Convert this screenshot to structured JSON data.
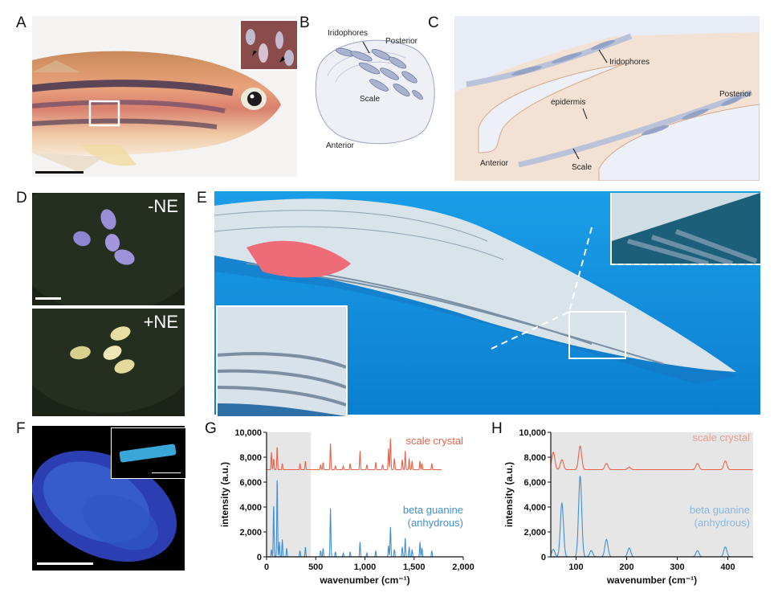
{
  "panel_labels": {
    "A": "A",
    "B": "B",
    "C": "C",
    "D": "D",
    "E": "E",
    "F": "F",
    "G": "G",
    "H": "H"
  },
  "panel_b": {
    "iridophores": "Iridophores",
    "posterior": "Posterior",
    "scale": "Scale",
    "anterior": "Anterior"
  },
  "panel_c": {
    "iridophores": "Iridophores",
    "posterior": "Posterior",
    "epidermis": "epidermis",
    "anterior": "Anterior",
    "scale": "Scale"
  },
  "panel_d": {
    "top": "-NE",
    "bottom": "+NE"
  },
  "colors": {
    "scale_crystal": "#e8634a",
    "beta_guanine": "#3f8fd6",
    "shade": "#e6e6e6"
  },
  "chart_data": [
    {
      "panel": "G",
      "type": "line",
      "xlabel": "wavenumber (cm⁻¹)",
      "ylabel": "intensity (a.u.)",
      "xlim": [
        0,
        2000
      ],
      "ylim": [
        0,
        10000
      ],
      "xticks": [
        0,
        500,
        1000,
        1500,
        2000
      ],
      "xtick_labels": [
        "0",
        "500",
        "1,000",
        "1,500",
        "2,000"
      ],
      "yticks": [
        0,
        2000,
        4000,
        6000,
        8000,
        10000
      ],
      "ytick_labels": [
        "0",
        "2,000",
        "4,000",
        "6,000",
        "8,000",
        "10,000"
      ],
      "shaded_range": [
        0,
        450
      ],
      "series": [
        {
          "name": "scale crystal",
          "label_line2": "",
          "baseline": 7000,
          "peaks": [
            [
              50,
              1400
            ],
            [
              72,
              900
            ],
            [
              108,
              1900
            ],
            [
              160,
              500
            ],
            [
              340,
              500
            ],
            [
              395,
              700
            ],
            [
              550,
              400
            ],
            [
              575,
              600
            ],
            [
              650,
              2100
            ],
            [
              700,
              300
            ],
            [
              780,
              300
            ],
            [
              850,
              500
            ],
            [
              950,
              1500
            ],
            [
              1020,
              400
            ],
            [
              1110,
              600
            ],
            [
              1180,
              400
            ],
            [
              1240,
              1700
            ],
            [
              1260,
              2500
            ],
            [
              1300,
              900
            ],
            [
              1380,
              800
            ],
            [
              1410,
              1500
            ],
            [
              1450,
              900
            ],
            [
              1480,
              700
            ],
            [
              1560,
              700
            ],
            [
              1580,
              500
            ],
            [
              1680,
              500
            ]
          ]
        },
        {
          "name": "beta guanine",
          "label_line2": "(anhydrous)",
          "baseline": 0,
          "peaks": [
            [
              50,
              600
            ],
            [
              72,
              4300
            ],
            [
              108,
              6500
            ],
            [
              130,
              1200
            ],
            [
              160,
              1400
            ],
            [
              205,
              700
            ],
            [
              340,
              500
            ],
            [
              395,
              800
            ],
            [
              550,
              500
            ],
            [
              575,
              700
            ],
            [
              650,
              3900
            ],
            [
              700,
              400
            ],
            [
              780,
              300
            ],
            [
              850,
              400
            ],
            [
              950,
              1200
            ],
            [
              1020,
              300
            ],
            [
              1110,
              500
            ],
            [
              1240,
              900
            ],
            [
              1260,
              2400
            ],
            [
              1300,
              600
            ],
            [
              1380,
              800
            ],
            [
              1410,
              1500
            ],
            [
              1450,
              800
            ],
            [
              1480,
              600
            ],
            [
              1560,
              1200
            ],
            [
              1580,
              700
            ],
            [
              1680,
              500
            ]
          ]
        }
      ]
    },
    {
      "panel": "H",
      "type": "line",
      "xlabel": "wavenumber (cm⁻¹)",
      "ylabel": "intensity (a.u.)",
      "xlim": [
        50,
        450
      ],
      "ylim": [
        0,
        10000
      ],
      "xticks": [
        100,
        200,
        300,
        400
      ],
      "xtick_labels": [
        "100",
        "200",
        "300",
        "400"
      ],
      "yticks": [
        0,
        2000,
        4000,
        6000,
        8000,
        10000
      ],
      "ytick_labels": [
        "0",
        "2,000",
        "4,000",
        "6,000",
        "8,000",
        "10,000"
      ],
      "shaded_range": [
        50,
        450
      ],
      "series": [
        {
          "name": "scale crystal",
          "label_line2": "",
          "baseline": 7000,
          "peaks": [
            [
              55,
              1400
            ],
            [
              72,
              800
            ],
            [
              108,
              1900
            ],
            [
              160,
              500
            ],
            [
              205,
              200
            ],
            [
              340,
              500
            ],
            [
              395,
              700
            ]
          ]
        },
        {
          "name": "beta guanine",
          "label_line2": "(anhydrous)",
          "baseline": 0,
          "peaks": [
            [
              55,
              600
            ],
            [
              72,
              4300
            ],
            [
              108,
              6500
            ],
            [
              130,
              500
            ],
            [
              160,
              1400
            ],
            [
              205,
              700
            ],
            [
              340,
              500
            ],
            [
              395,
              800
            ]
          ]
        }
      ]
    }
  ]
}
